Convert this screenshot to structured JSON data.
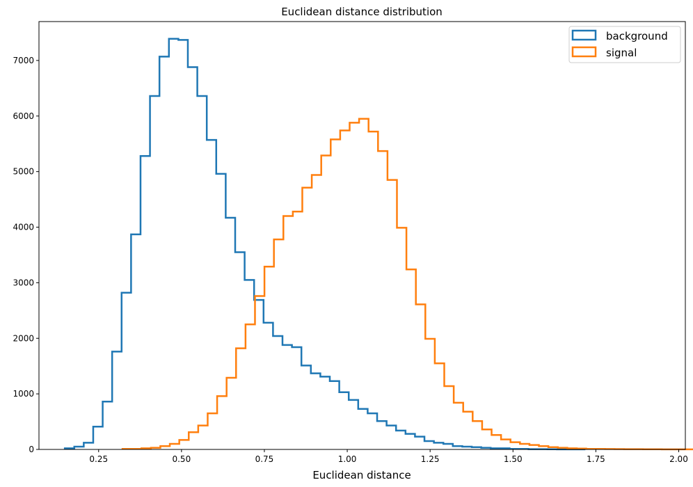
{
  "chart_data": {
    "type": "histogram",
    "title": "Euclidean distance distribution",
    "xlabel": "Euclidean distance",
    "ylabel": "",
    "xlim": [
      0.07,
      2.02
    ],
    "ylim": [
      0,
      7700
    ],
    "xticks": [
      0.25,
      0.5,
      0.75,
      1.0,
      1.25,
      1.5,
      1.75,
      2.0
    ],
    "xtick_labels": [
      "0.25",
      "0.50",
      "0.75",
      "1.00",
      "1.25",
      "1.50",
      "1.75",
      "2.00"
    ],
    "yticks": [
      0,
      1000,
      2000,
      3000,
      4000,
      5000,
      6000,
      7000
    ],
    "ytick_labels": [
      "0",
      "1000",
      "2000",
      "3000",
      "4000",
      "5000",
      "6000",
      "7000"
    ],
    "legend": {
      "position": "top-right",
      "entries": [
        "background",
        "signal"
      ]
    },
    "series": [
      {
        "name": "background",
        "color": "#1f77b4",
        "bin_start": 0.148,
        "bin_width": 0.02855,
        "values": [
          20,
          50,
          120,
          410,
          860,
          1760,
          2820,
          3870,
          5280,
          6360,
          7070,
          7390,
          7370,
          6880,
          6360,
          5570,
          4960,
          4170,
          3550,
          3050,
          2690,
          2280,
          2040,
          1880,
          1840,
          1510,
          1370,
          1310,
          1230,
          1030,
          890,
          730,
          650,
          510,
          430,
          340,
          280,
          230,
          150,
          120,
          100,
          60,
          50,
          40,
          30,
          20,
          20,
          10,
          10,
          5,
          5,
          3,
          2,
          1,
          1
        ]
      },
      {
        "name": "signal",
        "color": "#ff7f0e",
        "bin_start": 0.322,
        "bin_width": 0.02855,
        "values": [
          10,
          10,
          20,
          30,
          60,
          100,
          170,
          310,
          430,
          650,
          960,
          1290,
          1820,
          2250,
          2760,
          3290,
          3780,
          4200,
          4280,
          4710,
          4940,
          5290,
          5580,
          5740,
          5880,
          5950,
          5720,
          5370,
          4850,
          3990,
          3240,
          2610,
          1990,
          1550,
          1140,
          840,
          680,
          510,
          360,
          260,
          180,
          130,
          100,
          80,
          60,
          40,
          30,
          20,
          15,
          10,
          10,
          8,
          6,
          5,
          4,
          3,
          3,
          2,
          2,
          2,
          1,
          1
        ]
      }
    ]
  }
}
